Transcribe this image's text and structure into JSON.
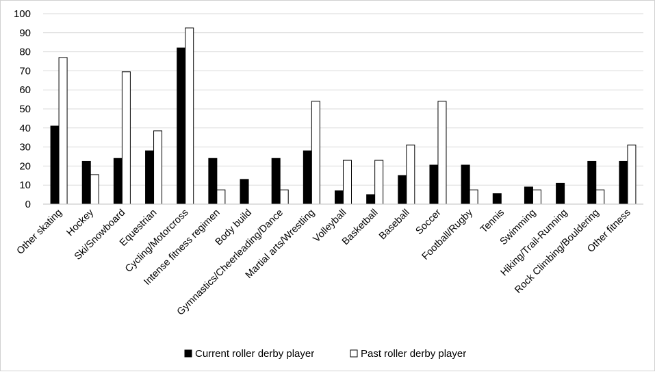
{
  "chart_data": {
    "type": "bar",
    "categories": [
      "Other skating",
      "Hockey",
      "Ski/Snowboard",
      "Equestrian",
      "Cycling/Motorcross",
      "Intense fitness regimen",
      "Body build",
      "Gymnastics/Cheerleading/Dance",
      "Martial arts/Wrestling",
      "Volleyball",
      "Basketball",
      "Baseball",
      "Soccer",
      "Football/Rugby",
      "Tennis",
      "Swimming",
      "Hiking/Trail-Running",
      "Rock Climbing/Bouldering",
      "Other fitness"
    ],
    "series": [
      {
        "name": "Current roller derby player",
        "color": "#000000",
        "values": [
          41,
          22.5,
          24,
          28,
          82,
          24,
          13,
          24,
          28,
          7,
          5,
          15,
          20.5,
          20.5,
          5.5,
          9,
          11,
          22.5,
          22.5
        ]
      },
      {
        "name": "Past roller derby player",
        "color": "#ffffff",
        "values": [
          77,
          15.5,
          69.5,
          38.5,
          92.5,
          7.5,
          0,
          7.5,
          54,
          23,
          23,
          31,
          54,
          7.5,
          0,
          7.5,
          0,
          7.5,
          31
        ]
      }
    ],
    "yticks": [
      "0",
      "10",
      "20",
      "30",
      "40",
      "50",
      "60",
      "70",
      "80",
      "90",
      "100"
    ],
    "ylim": [
      0,
      100
    ],
    "grid": true,
    "legend_position": "bottom",
    "title": "",
    "xlabel": "",
    "ylabel": ""
  }
}
